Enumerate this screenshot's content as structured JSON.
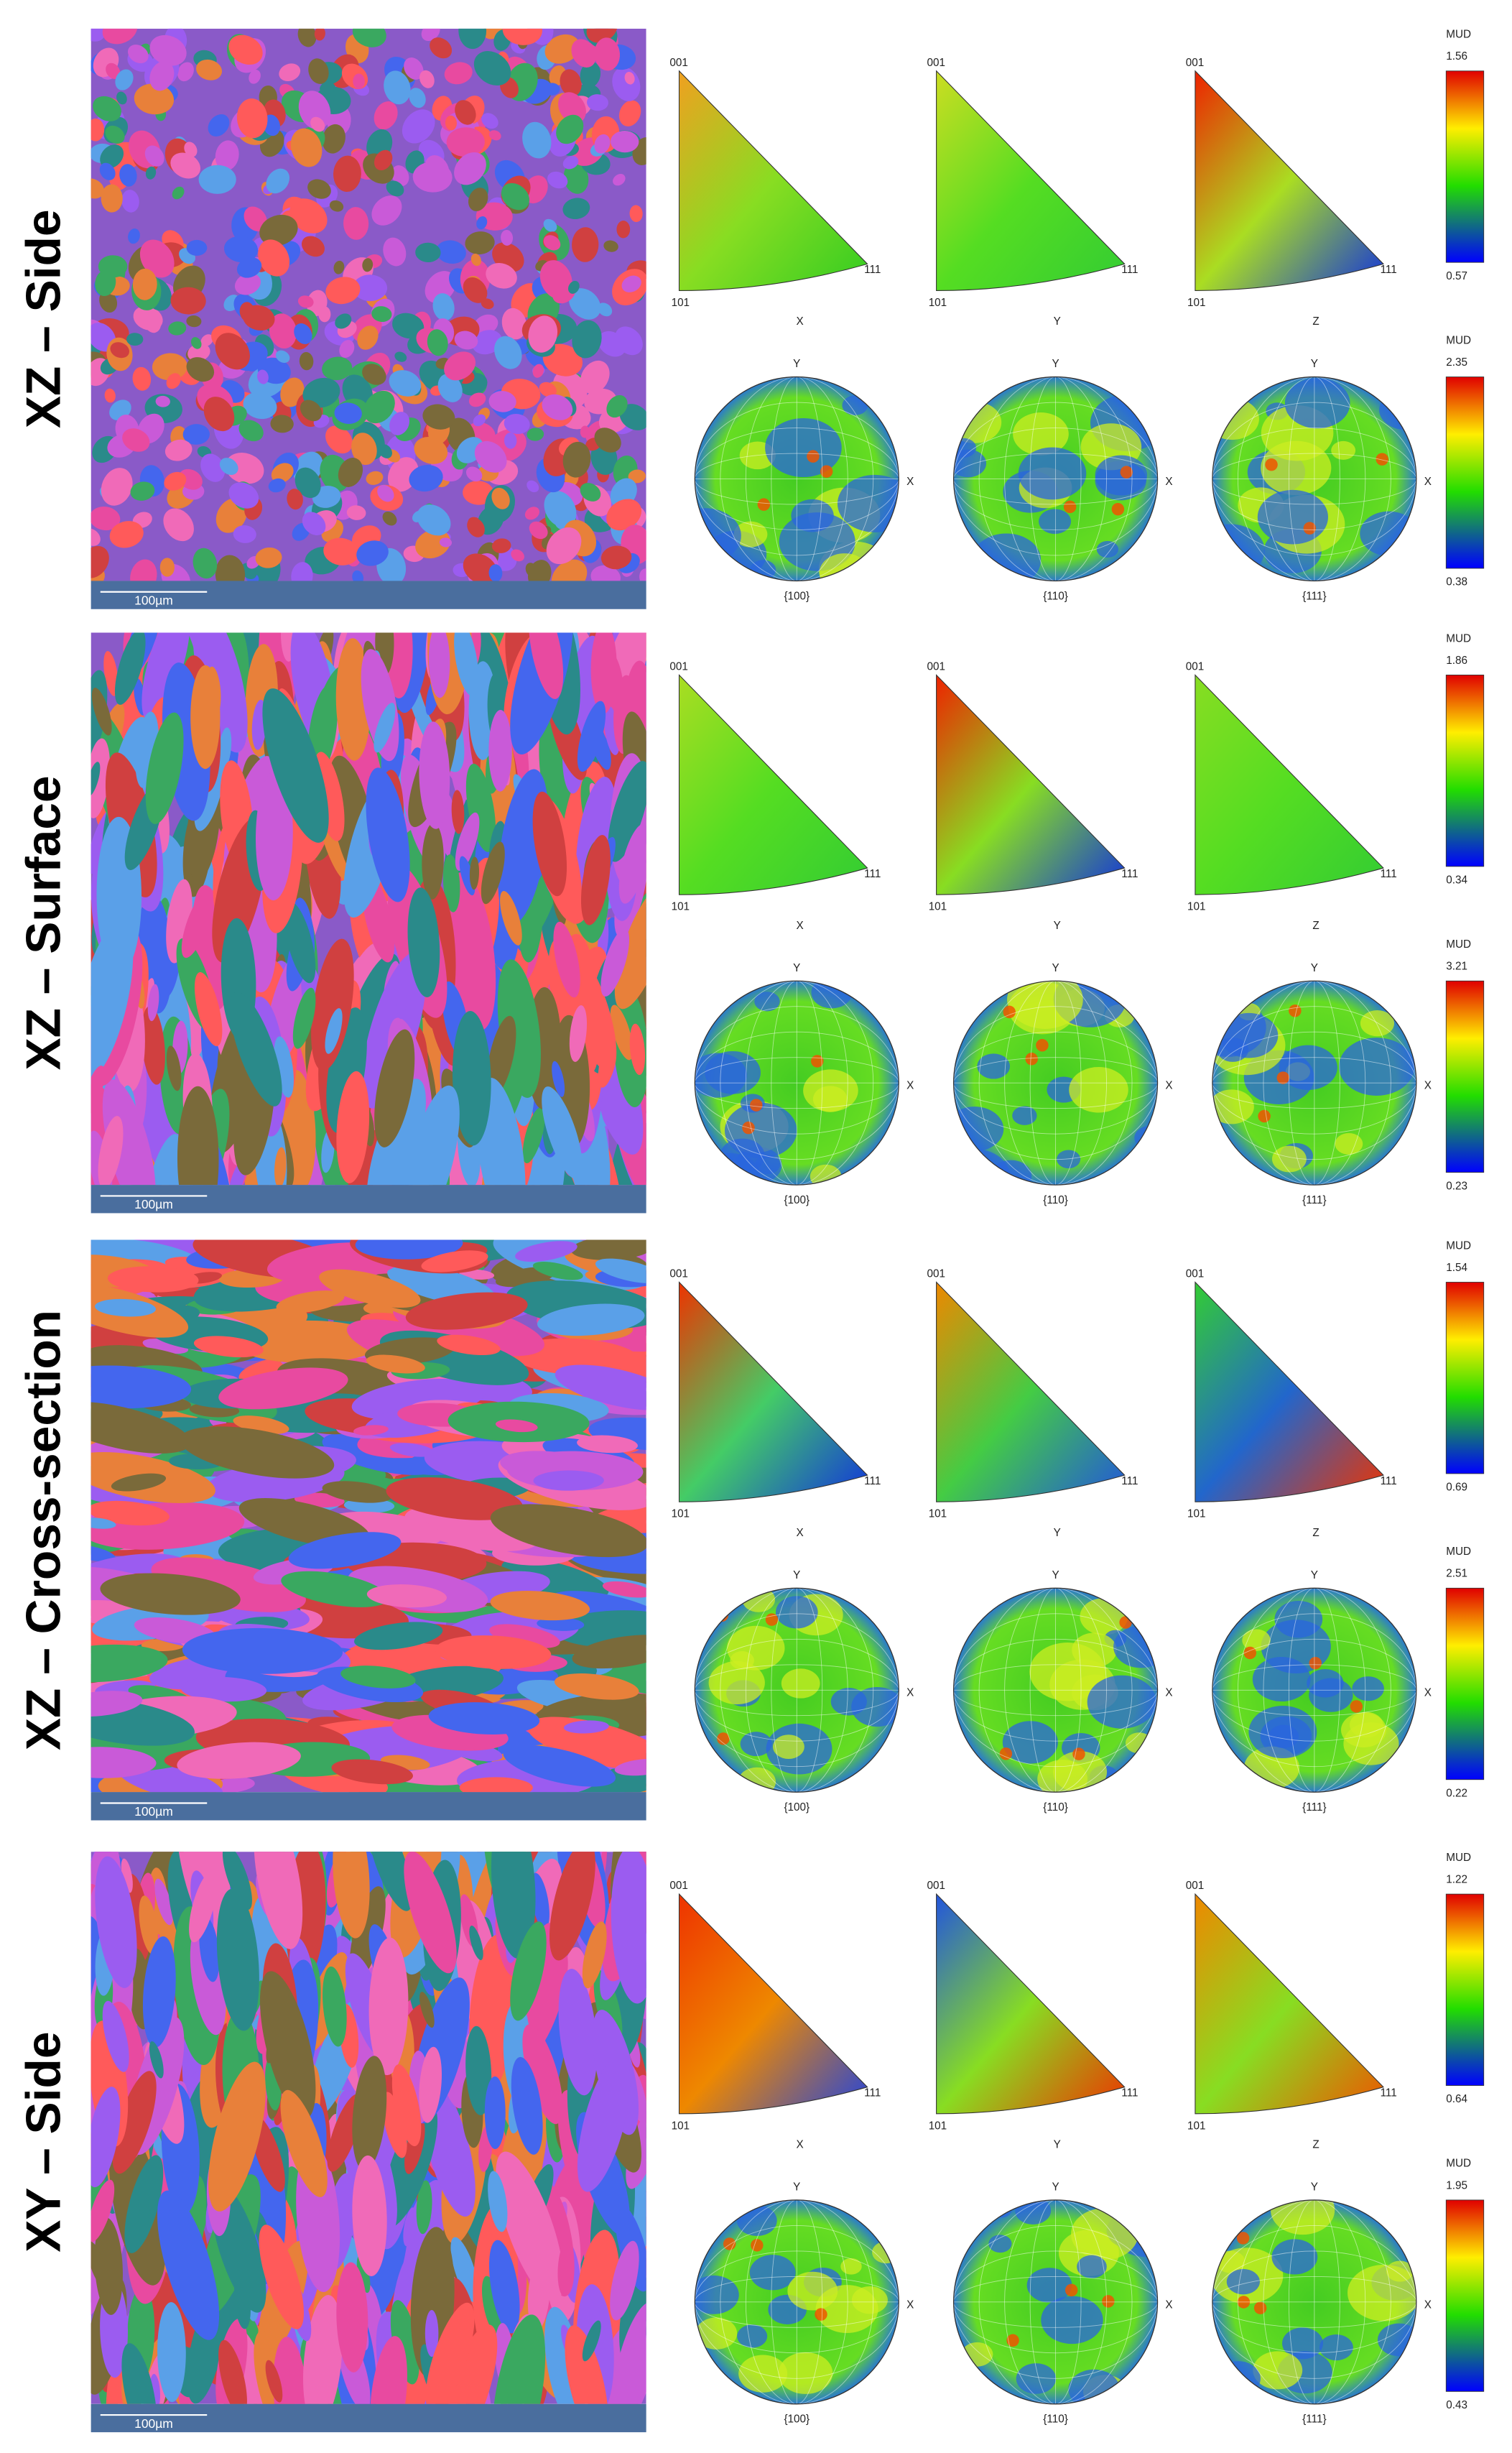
{
  "panels": [
    {
      "label": "XZ – Side",
      "scale_bar": "100µm",
      "ipf": {
        "corners": [
          "001",
          "101",
          "111"
        ],
        "axes": [
          "X",
          "Y",
          "Z"
        ],
        "colorbar": {
          "title": "MUD",
          "max": "1.56",
          "min": "0.57"
        }
      },
      "pole_figures": {
        "families": [
          "{100}",
          "{110}",
          "{111}"
        ],
        "axes": [
          "Y",
          "X"
        ],
        "colorbar": {
          "title": "MUD",
          "max": "2.35",
          "min": "0.38"
        }
      }
    },
    {
      "label": "XZ – Surface",
      "scale_bar": "100µm",
      "ipf": {
        "corners": [
          "001",
          "101",
          "111"
        ],
        "axes": [
          "X",
          "Y",
          "Z"
        ],
        "colorbar": {
          "title": "MUD",
          "max": "1.86",
          "min": "0.34"
        }
      },
      "pole_figures": {
        "families": [
          "{100}",
          "{110}",
          "{111}"
        ],
        "axes": [
          "Y",
          "X"
        ],
        "colorbar": {
          "title": "MUD",
          "max": "3.21",
          "min": "0.23"
        }
      }
    },
    {
      "label": "XZ – Cross-section",
      "scale_bar": "100µm",
      "ipf": {
        "corners": [
          "001",
          "101",
          "111"
        ],
        "axes": [
          "X",
          "Y",
          "Z"
        ],
        "colorbar": {
          "title": "MUD",
          "max": "1.54",
          "min": "0.69"
        }
      },
      "pole_figures": {
        "families": [
          "{100}",
          "{110}",
          "{111}"
        ],
        "axes": [
          "Y",
          "X"
        ],
        "colorbar": {
          "title": "MUD",
          "max": "2.51",
          "min": "0.22"
        }
      }
    },
    {
      "label": "XY – Side",
      "scale_bar": "100µm",
      "ipf": {
        "corners": [
          "001",
          "101",
          "111"
        ],
        "axes": [
          "X",
          "Y",
          "Z"
        ],
        "colorbar": {
          "title": "MUD",
          "max": "1.22",
          "min": "0.64"
        }
      },
      "pole_figures": {
        "families": [
          "{100}",
          "{110}",
          "{111}"
        ],
        "axes": [
          "Y",
          "X"
        ],
        "colorbar": {
          "title": "MUD",
          "max": "1.95",
          "min": "0.43"
        }
      }
    }
  ]
}
